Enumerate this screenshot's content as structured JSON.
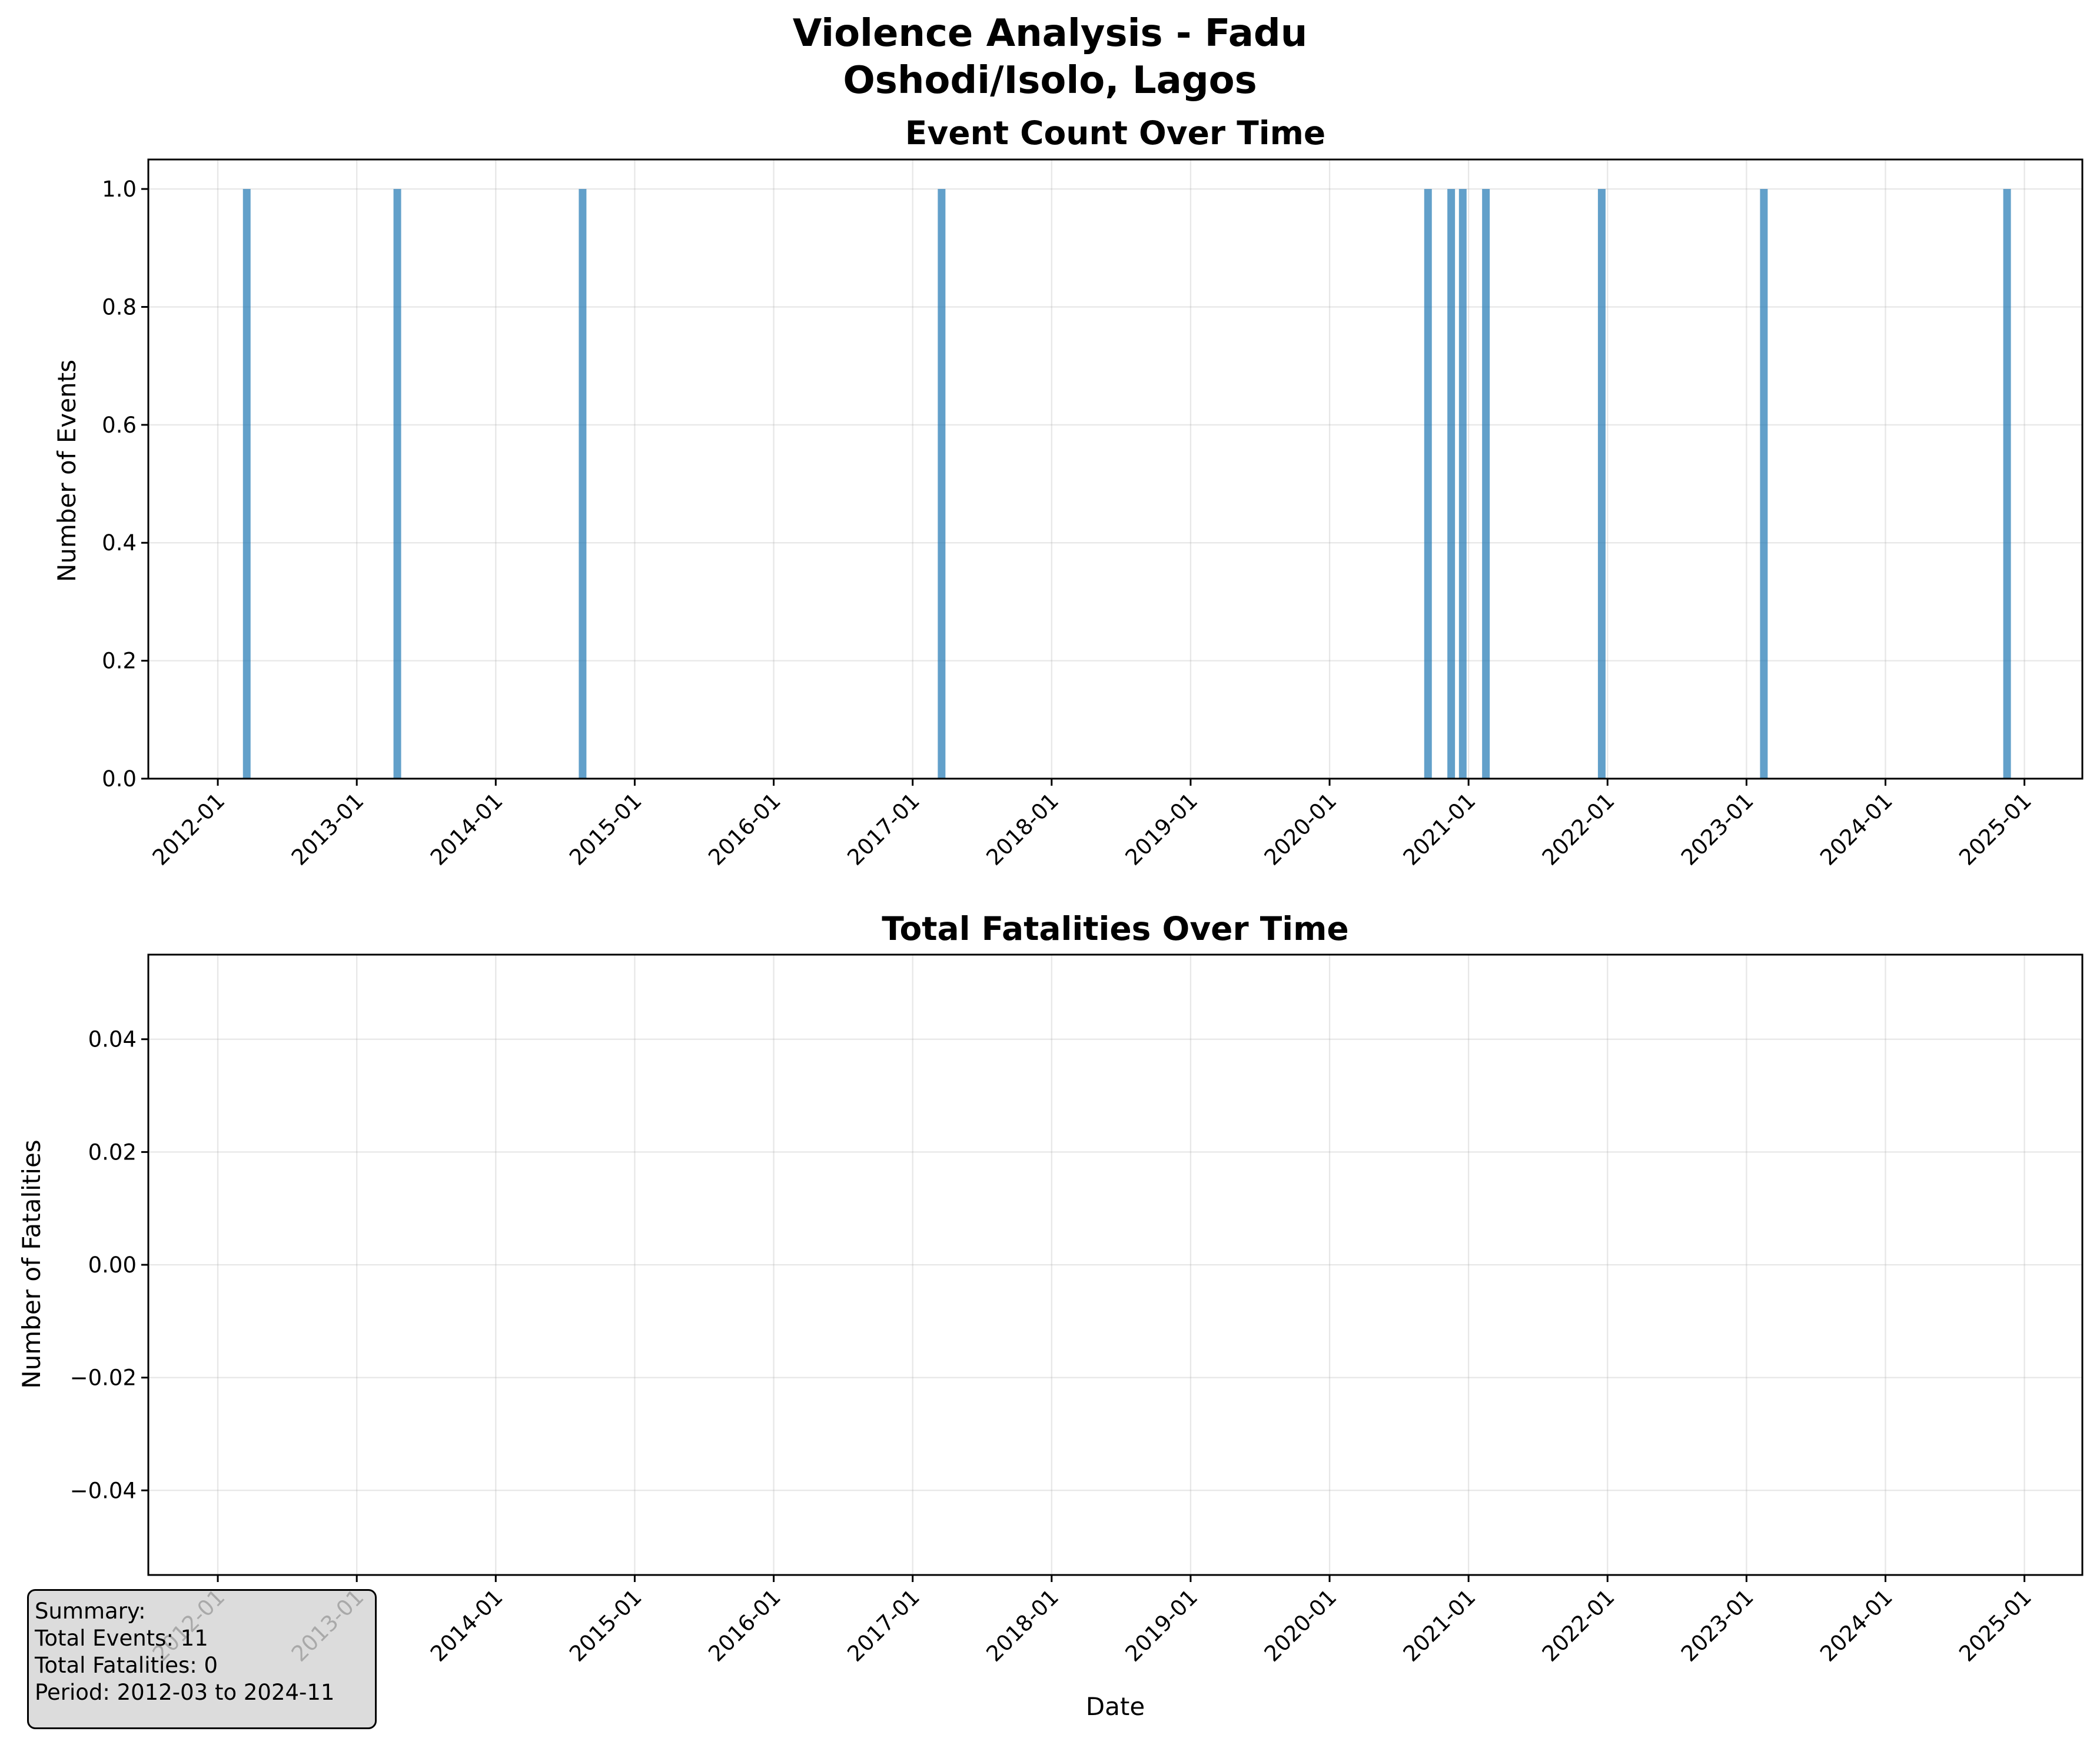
{
  "figure": {
    "title_line1": "Violence Analysis - Fadu",
    "title_line2": "Oshodi/Isolo, Lagos"
  },
  "summary": {
    "heading": "Summary:",
    "total_events": "Total Events: 11",
    "total_fatalities": "Total Fatalities: 0",
    "period": "Period: 2012-03 to 2024-11"
  },
  "chart_data": [
    {
      "type": "bar",
      "title": "Event Count Over Time",
      "xlabel": "",
      "ylabel": "Number of Events",
      "bar_color": "#1f77b4",
      "bar_alpha": 0.7,
      "x": [
        "2012-03",
        "2013-04",
        "2014-08",
        "2017-03",
        "2020-09",
        "2020-11",
        "2020-12",
        "2021-02",
        "2021-12",
        "2023-02",
        "2024-11"
      ],
      "values": [
        1,
        1,
        1,
        1,
        1,
        1,
        1,
        1,
        1,
        1,
        1
      ],
      "xlim": [
        "2011-07",
        "2025-06"
      ],
      "ylim": [
        0,
        1.05
      ],
      "xticks": [
        "2012-01",
        "2013-01",
        "2014-01",
        "2015-01",
        "2016-01",
        "2017-01",
        "2018-01",
        "2019-01",
        "2020-01",
        "2021-01",
        "2022-01",
        "2023-01",
        "2024-01",
        "2025-01"
      ],
      "yticks": [
        "0.0",
        "0.2",
        "0.4",
        "0.6",
        "0.8",
        "1.0"
      ],
      "grid": true
    },
    {
      "type": "line",
      "title": "Total Fatalities Over Time",
      "xlabel": "Date",
      "ylabel": "Number of Fatalities",
      "x": [],
      "values": [],
      "xlim": [
        "2011-07",
        "2025-06"
      ],
      "ylim": [
        -0.055,
        0.055
      ],
      "xticks": [
        "2012-01",
        "2013-01",
        "2014-01",
        "2015-01",
        "2016-01",
        "2017-01",
        "2018-01",
        "2019-01",
        "2020-01",
        "2021-01",
        "2022-01",
        "2023-01",
        "2024-01",
        "2025-01"
      ],
      "yticks": [
        "−0.04",
        "−0.02",
        "0.00",
        "0.02",
        "0.04"
      ],
      "grid": true
    }
  ]
}
